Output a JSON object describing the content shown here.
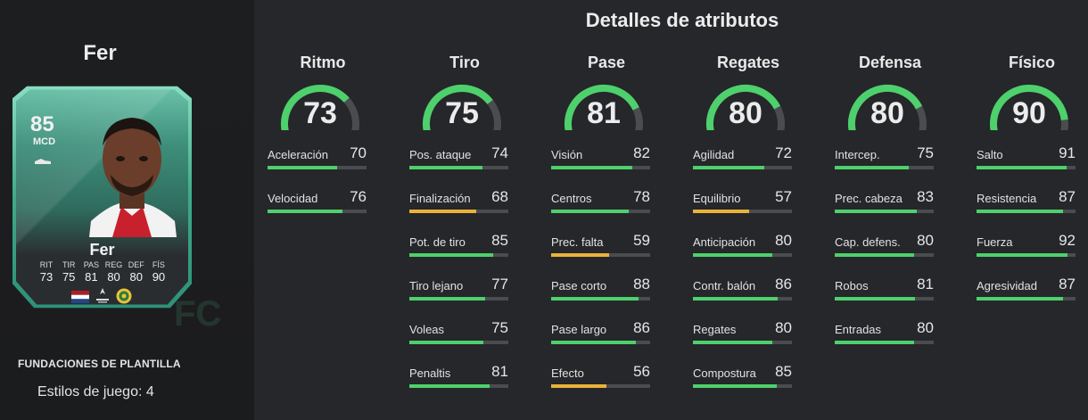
{
  "player": {
    "name": "Fer",
    "rating": "85",
    "position": "MCD",
    "card_name": "Fer",
    "card_stats": [
      {
        "label": "RIT",
        "value": "73"
      },
      {
        "label": "TIR",
        "value": "75"
      },
      {
        "label": "PAS",
        "value": "81"
      },
      {
        "label": "REG",
        "value": "80"
      },
      {
        "label": "DEF",
        "value": "80"
      },
      {
        "label": "FÍS",
        "value": "90"
      }
    ],
    "nation_icon": "netherlands-flag-icon",
    "league_icon": "league-logo-icon",
    "club_icon": "club-crest-icon"
  },
  "squad_label": "FUNDACIONES DE PLANTILLA",
  "playstyles_label": "Estilos de juego: 4",
  "attributes_title": "Detalles de atributos",
  "colors": {
    "green": "#4ed06c",
    "yellow": "#e9b23a",
    "track": "#4a4c4f"
  },
  "categories": [
    {
      "name": "Ritmo",
      "value": 73,
      "attributes": [
        {
          "label": "Aceleración",
          "value": 70
        },
        {
          "label": "Velocidad",
          "value": 76
        }
      ]
    },
    {
      "name": "Tiro",
      "value": 75,
      "attributes": [
        {
          "label": "Pos. ataque",
          "value": 74
        },
        {
          "label": "Finalización",
          "value": 68
        },
        {
          "label": "Pot. de tiro",
          "value": 85
        },
        {
          "label": "Tiro lejano",
          "value": 77
        },
        {
          "label": "Voleas",
          "value": 75
        },
        {
          "label": "Penaltis",
          "value": 81
        }
      ]
    },
    {
      "name": "Pase",
      "value": 81,
      "attributes": [
        {
          "label": "Visión",
          "value": 82
        },
        {
          "label": "Centros",
          "value": 78
        },
        {
          "label": "Prec. falta",
          "value": 59
        },
        {
          "label": "Pase corto",
          "value": 88
        },
        {
          "label": "Pase largo",
          "value": 86
        },
        {
          "label": "Efecto",
          "value": 56
        }
      ]
    },
    {
      "name": "Regates",
      "value": 80,
      "attributes": [
        {
          "label": "Agilidad",
          "value": 72
        },
        {
          "label": "Equilibrio",
          "value": 57
        },
        {
          "label": "Anticipación",
          "value": 80
        },
        {
          "label": "Contr. balón",
          "value": 86
        },
        {
          "label": "Regates",
          "value": 80
        },
        {
          "label": "Compostura",
          "value": 85
        }
      ]
    },
    {
      "name": "Defensa",
      "value": 80,
      "attributes": [
        {
          "label": "Intercep.",
          "value": 75
        },
        {
          "label": "Prec. cabeza",
          "value": 83
        },
        {
          "label": "Cap. defens.",
          "value": 80
        },
        {
          "label": "Robos",
          "value": 81
        },
        {
          "label": "Entradas",
          "value": 80
        }
      ]
    },
    {
      "name": "Físico",
      "value": 90,
      "attributes": [
        {
          "label": "Salto",
          "value": 91
        },
        {
          "label": "Resistencia",
          "value": 87
        },
        {
          "label": "Fuerza",
          "value": 92
        },
        {
          "label": "Agresividad",
          "value": 87
        }
      ]
    }
  ]
}
